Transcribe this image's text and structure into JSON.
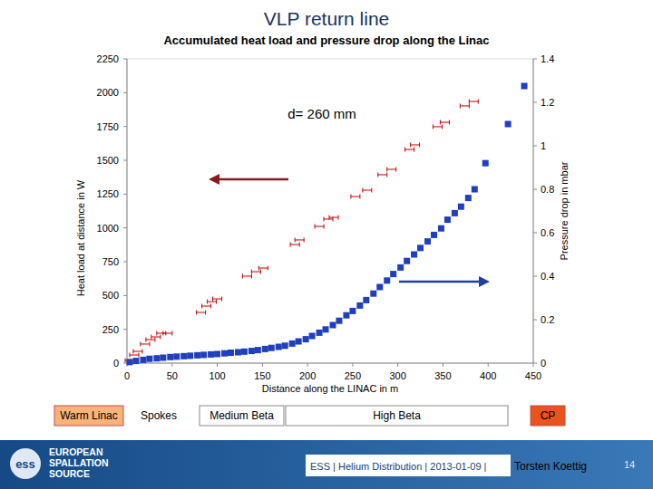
{
  "chart_data": {
    "type": "scatter",
    "title": "VLP return line",
    "subtitle": "Accumulated heat load and pressure drop along the Linac",
    "x_label": "Distance along the LINAC in m",
    "y_label": "Heat load at distance  in W",
    "y2_label": "Pressure drop in mbar",
    "annotation": "d= 260 mm",
    "xlim": [
      0,
      450
    ],
    "xticks": [
      0,
      50,
      100,
      150,
      200,
      250,
      300,
      350,
      400,
      450
    ],
    "ylim": [
      0,
      2250
    ],
    "yticks": [
      0,
      250,
      500,
      750,
      1000,
      1250,
      1500,
      1750,
      2000,
      2250
    ],
    "y2lim": [
      0,
      1.4
    ],
    "y2ticks": [
      0,
      0.2,
      0.4,
      0.6,
      0.8,
      1,
      1.2,
      1.4
    ],
    "grid": false,
    "series": [
      {
        "color": "#c00000",
        "marker": "dash",
        "x": [
          3,
          8,
          12,
          20,
          26,
          32,
          38,
          45,
          82,
          88,
          94,
          100,
          133,
          143,
          151,
          186,
          191,
          213,
          223,
          229,
          253,
          266,
          283,
          293,
          313,
          319,
          344,
          352,
          374,
          384
        ],
        "values": [
          20,
          60,
          87,
          141,
          174,
          194,
          221,
          221,
          375,
          422,
          455,
          475,
          643,
          676,
          703,
          877,
          911,
          1011,
          1065,
          1078,
          1232,
          1279,
          1393,
          1433,
          1580,
          1614,
          1748,
          1781,
          1902,
          1935
        ]
      },
      {
        "color": "#1f3fbf",
        "marker": "square",
        "axis": "y2",
        "x": [
          3,
          10,
          18,
          25,
          33,
          40,
          48,
          55,
          63,
          70,
          78,
          85,
          93,
          100,
          108,
          115,
          123,
          130,
          138,
          145,
          153,
          160,
          168,
          175,
          183,
          190,
          198,
          205,
          213,
          220,
          228,
          235,
          243,
          250,
          258,
          265,
          273,
          280,
          288,
          295,
          303,
          310,
          318,
          325,
          333,
          340,
          348,
          355,
          363,
          370,
          378,
          385,
          397,
          422,
          440
        ],
        "values": [
          0.005,
          0.01,
          0.015,
          0.02,
          0.022,
          0.025,
          0.028,
          0.03,
          0.032,
          0.034,
          0.036,
          0.038,
          0.04,
          0.042,
          0.045,
          0.048,
          0.05,
          0.053,
          0.056,
          0.06,
          0.065,
          0.07,
          0.075,
          0.08,
          0.09,
          0.1,
          0.11,
          0.125,
          0.14,
          0.155,
          0.175,
          0.195,
          0.22,
          0.24,
          0.265,
          0.29,
          0.32,
          0.35,
          0.38,
          0.41,
          0.44,
          0.47,
          0.5,
          0.53,
          0.56,
          0.59,
          0.62,
          0.66,
          0.69,
          0.72,
          0.76,
          0.8,
          0.92,
          1.1,
          1.275
        ]
      }
    ]
  },
  "slide": {
    "phases": [
      "Warm Linac",
      "Spokes",
      "Medium Beta",
      "High Beta",
      "CP"
    ],
    "footer": {
      "logo": "ess",
      "organisation": [
        "EUROPEAN",
        "SPALLATION",
        "SOURCE"
      ],
      "caption": "ESS | Helium Distribution | 2013-01-09 |",
      "author": "Torsten Koettig",
      "page": "14"
    }
  }
}
